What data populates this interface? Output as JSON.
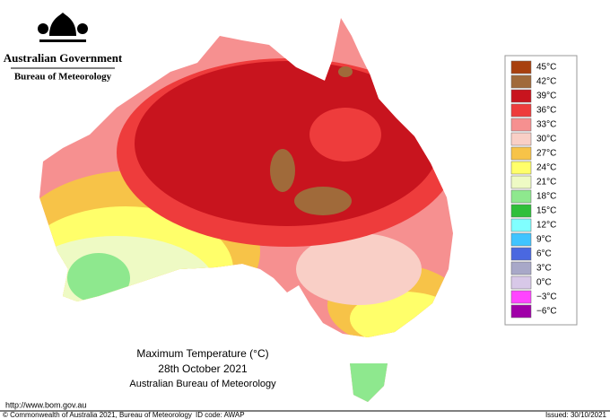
{
  "header": {
    "government": "Australian Government",
    "bureau": "Bureau of Meteorology"
  },
  "legend": [
    {
      "label": "45°C",
      "color": "#a8400e"
    },
    {
      "label": "42°C",
      "color": "#a06a3a"
    },
    {
      "label": "39°C",
      "color": "#c8141e"
    },
    {
      "label": "36°C",
      "color": "#ee3c3c"
    },
    {
      "label": "33°C",
      "color": "#f69090"
    },
    {
      "label": "30°C",
      "color": "#f9cfc6"
    },
    {
      "label": "27°C",
      "color": "#f7c348"
    },
    {
      "label": "24°C",
      "color": "#ffff6a"
    },
    {
      "label": "21°C",
      "color": "#eefac4"
    },
    {
      "label": "18°C",
      "color": "#8ee88e"
    },
    {
      "label": "15°C",
      "color": "#2fbf3a"
    },
    {
      "label": "12°C",
      "color": "#80ffff"
    },
    {
      "label": "9°C",
      "color": "#40c4ff"
    },
    {
      "label": "6°C",
      "color": "#4a68e0"
    },
    {
      "label": "3°C",
      "color": "#a8a8c8"
    },
    {
      "label": "0°C",
      "color": "#d8c8e8"
    },
    {
      "label": "−3°C",
      "color": "#ff44ff"
    },
    {
      "label": "−6°C",
      "color": "#a000a8"
    }
  ],
  "title": {
    "line1": "Maximum Temperature (°C)",
    "line2": "28th October 2021",
    "line3": "Australian Bureau of Meteorology"
  },
  "footer": {
    "url": "http://www.bom.gov.au",
    "copyright": "© Commonwealth of Australia 2021, Bureau of Meteorology",
    "id_code": "ID code: AWAP",
    "issued": "Issued: 30/10/2021"
  }
}
